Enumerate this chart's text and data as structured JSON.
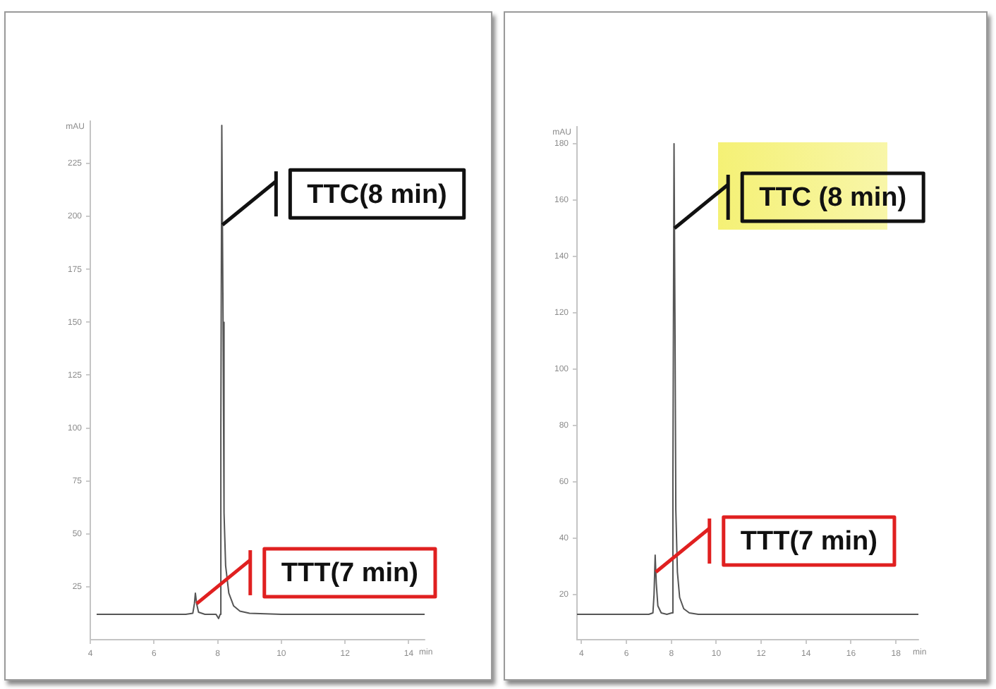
{
  "chart_data": [
    {
      "type": "line",
      "ylabel": "mAU",
      "xlabel": "min",
      "color": "#555555",
      "marker": "none",
      "x": [
        4.2,
        5,
        6,
        7,
        7.22,
        7.27,
        7.3,
        7.34,
        7.4,
        7.6,
        7.95,
        8.03,
        8.08,
        8.1,
        8.13,
        8.17,
        8.2,
        8.25,
        8.35,
        8.5,
        8.7,
        9,
        10,
        12,
        14.5
      ],
      "values": [
        12,
        12,
        12,
        12,
        12.5,
        17,
        22,
        17,
        13,
        12,
        12,
        10,
        12,
        100,
        243,
        150,
        60,
        35,
        22,
        16,
        13.5,
        12.5,
        12,
        12,
        12
      ],
      "xlim": [
        4,
        14.5
      ],
      "xticks": [
        4,
        6,
        8,
        10,
        12,
        14
      ],
      "ylim": [
        0,
        245
      ],
      "yticks": [
        25,
        50,
        75,
        100,
        125,
        150,
        175,
        200,
        225
      ],
      "annotations": [
        {
          "text": "TTC(8 min)",
          "x": 8.15,
          "y": 196
        },
        {
          "text": "TTT(7 min)",
          "x": 7.34,
          "y": 17
        }
      ]
    },
    {
      "type": "line",
      "ylabel": "mAU",
      "xlabel": "min",
      "color": "#555555",
      "marker": "none",
      "x": [
        3.8,
        5,
        6,
        7,
        7.18,
        7.23,
        7.28,
        7.33,
        7.4,
        7.55,
        7.8,
        8.02,
        8.07,
        8.12,
        8.16,
        8.2,
        8.27,
        8.37,
        8.55,
        8.8,
        9.2,
        12,
        16,
        19
      ],
      "values": [
        13,
        13,
        13,
        13,
        13.5,
        20,
        34,
        24,
        16,
        13.5,
        13,
        13.5,
        60,
        180,
        120,
        50,
        28,
        19,
        15,
        13.5,
        13,
        13,
        13,
        13
      ],
      "xlim": [
        3.8,
        19
      ],
      "xticks": [
        4,
        6,
        8,
        10,
        12,
        14,
        16,
        18
      ],
      "ylim": [
        4,
        186
      ],
      "yticks": [
        20,
        40,
        60,
        80,
        100,
        120,
        140,
        160,
        180
      ],
      "annotations": [
        {
          "text": "TTC (8 min)",
          "x": 8.14,
          "y": 150
        },
        {
          "text": "TTT(7 min)",
          "x": 7.31,
          "y": 28
        }
      ]
    }
  ]
}
